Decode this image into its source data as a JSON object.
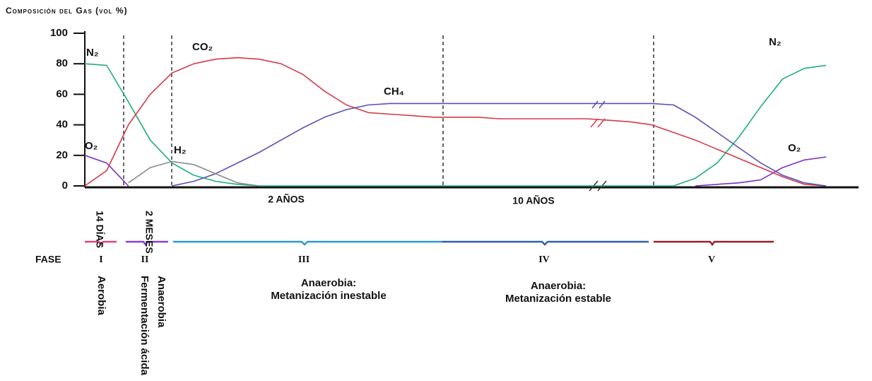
{
  "chart_data": {
    "type": "line",
    "title": "Composición del Gas (vol %)",
    "categories": [
      null,
      null,
      null,
      null,
      null,
      null,
      null,
      null,
      null,
      null,
      null,
      null,
      null,
      null,
      null,
      null,
      null,
      null,
      null,
      null,
      null,
      null,
      null,
      null,
      null,
      null,
      null,
      null,
      null,
      null,
      null,
      null,
      null,
      null,
      null,
      null
    ],
    "ylim": [
      0,
      100
    ],
    "yticks": [
      0,
      20,
      40,
      60,
      80,
      100
    ],
    "series": [
      {
        "name": "N₂",
        "color": "#1fae7a",
        "values": [
          80,
          79,
          55,
          30,
          15,
          7,
          3,
          1,
          0,
          0,
          0,
          0,
          0,
          0,
          0,
          0,
          0,
          0,
          0,
          0,
          0,
          0,
          0,
          0,
          0,
          0,
          0,
          0,
          5,
          15,
          32,
          52,
          70,
          77,
          79,
          null
        ]
      },
      {
        "name": "O₂",
        "color": "#7b2fc9",
        "values": [
          20,
          15,
          0,
          null,
          null,
          null,
          null,
          null,
          null,
          null,
          null,
          null,
          null,
          null,
          null,
          null,
          null,
          null,
          null,
          null,
          null,
          null,
          null,
          null,
          null,
          null,
          null,
          null,
          0,
          1,
          2,
          4,
          12,
          17,
          19,
          null
        ]
      },
      {
        "name": "CO₂",
        "color": "#d43a4a",
        "values": [
          0,
          10,
          40,
          60,
          74,
          80,
          83,
          84,
          83,
          80,
          73,
          62,
          53,
          48,
          47,
          46,
          45,
          45,
          45,
          44,
          44,
          44,
          44,
          44,
          43,
          42,
          40,
          35,
          30,
          24,
          18,
          12,
          6,
          1,
          0,
          null
        ]
      },
      {
        "name": "CH₄",
        "color": "#5b4fb5",
        "values": [
          null,
          null,
          null,
          null,
          0,
          3,
          8,
          15,
          22,
          30,
          38,
          45,
          50,
          53,
          54,
          54,
          54,
          54,
          54,
          54,
          54,
          54,
          54,
          54,
          54,
          54,
          54,
          53,
          45,
          35,
          25,
          15,
          7,
          2,
          0,
          null
        ]
      },
      {
        "name": "H₂",
        "color": "#8a8a8a",
        "values": [
          null,
          null,
          2,
          12,
          16,
          14,
          8,
          2,
          0,
          null,
          null,
          null,
          null,
          null,
          null,
          null,
          null,
          null,
          null,
          null,
          null,
          null,
          null,
          null,
          null,
          null,
          null,
          null,
          null,
          null,
          null,
          null,
          null,
          null,
          null,
          null
        ]
      }
    ],
    "durations": [
      "14 DÍAS",
      "2 MESES",
      "2 AÑOS",
      "10 AÑOS"
    ],
    "phase_label": "FASE",
    "phases": [
      {
        "numeral": "I",
        "description": [
          "Aerobia"
        ]
      },
      {
        "numeral": "II",
        "description": [
          "Anaerobia",
          "Fermentación ácida"
        ]
      },
      {
        "numeral": "III",
        "description": [
          "Anaerobia:",
          "Metanización inestable"
        ]
      },
      {
        "numeral": "IV",
        "description": [
          "Anaerobia:",
          "Metanización estable"
        ]
      },
      {
        "numeral": "V",
        "description": []
      }
    ]
  }
}
